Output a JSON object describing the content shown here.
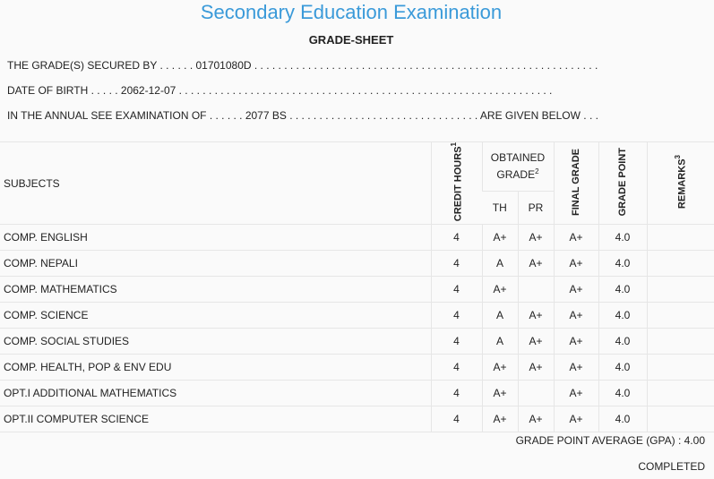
{
  "header": {
    "title": "Secondary Education Examination",
    "subtitle": "GRADE-SHEET"
  },
  "info": {
    "grade_secured_line": "THE GRADE(S) SECURED BY . . . . . . 01701080D . . . . . . . . . . . . . . . . . . . . . . . . . . . . . . . . . . . . . . . . . . . . . . . . . . . . . . . . . .",
    "dob_line": "DATE OF BIRTH . . . . . 2062-12-07 . . . . . . . . . . . . . . . . . . . . . . . . . . . . . . . . . . . . . . . . . . . . . . . . . . . . . . . . . . . . . . .",
    "exam_line": "IN THE ANNUAL SEE EXAMINATION OF . . . . . . 2077 BS . . . . . . . . . . . . . . . . . . . . . . . . . . . . . . . . ARE GIVEN BELOW . . ."
  },
  "table": {
    "headers": {
      "subjects": "SUBJECTS",
      "credit_hours": "CREDIT HOURS",
      "credit_hours_sup": "1",
      "obtained_grade": "OBTAINED GRADE",
      "obtained_grade_sup": "2",
      "th": "TH",
      "pr": "PR",
      "final_grade": "FINAL GRADE",
      "grade_point": "GRADE POINT",
      "remarks": "REMARKS",
      "remarks_sup": "3"
    },
    "rows": [
      {
        "subject": "COMP. ENGLISH",
        "credit": "4",
        "th": "A+",
        "pr": "A+",
        "final": "A+",
        "gp": "4.0",
        "remarks": ""
      },
      {
        "subject": "COMP. NEPALI",
        "credit": "4",
        "th": "A",
        "pr": "A+",
        "final": "A+",
        "gp": "4.0",
        "remarks": ""
      },
      {
        "subject": "COMP. MATHEMATICS",
        "credit": "4",
        "th": "A+",
        "pr": "",
        "final": "A+",
        "gp": "4.0",
        "remarks": ""
      },
      {
        "subject": "COMP. SCIENCE",
        "credit": "4",
        "th": "A",
        "pr": "A+",
        "final": "A+",
        "gp": "4.0",
        "remarks": ""
      },
      {
        "subject": "COMP. SOCIAL STUDIES",
        "credit": "4",
        "th": "A",
        "pr": "A+",
        "final": "A+",
        "gp": "4.0",
        "remarks": ""
      },
      {
        "subject": "COMP. HEALTH, POP & ENV EDU",
        "credit": "4",
        "th": "A+",
        "pr": "A+",
        "final": "A+",
        "gp": "4.0",
        "remarks": ""
      },
      {
        "subject": "OPT.I ADDITIONAL MATHEMATICS",
        "credit": "4",
        "th": "A+",
        "pr": "",
        "final": "A+",
        "gp": "4.0",
        "remarks": ""
      },
      {
        "subject": "OPT.II COMPUTER SCIENCE",
        "credit": "4",
        "th": "A+",
        "pr": "A+",
        "final": "A+",
        "gp": "4.0",
        "remarks": ""
      }
    ]
  },
  "footer": {
    "gpa_line": "GRADE POINT AVERAGE (GPA) : 4.00",
    "status": "COMPLETED"
  }
}
